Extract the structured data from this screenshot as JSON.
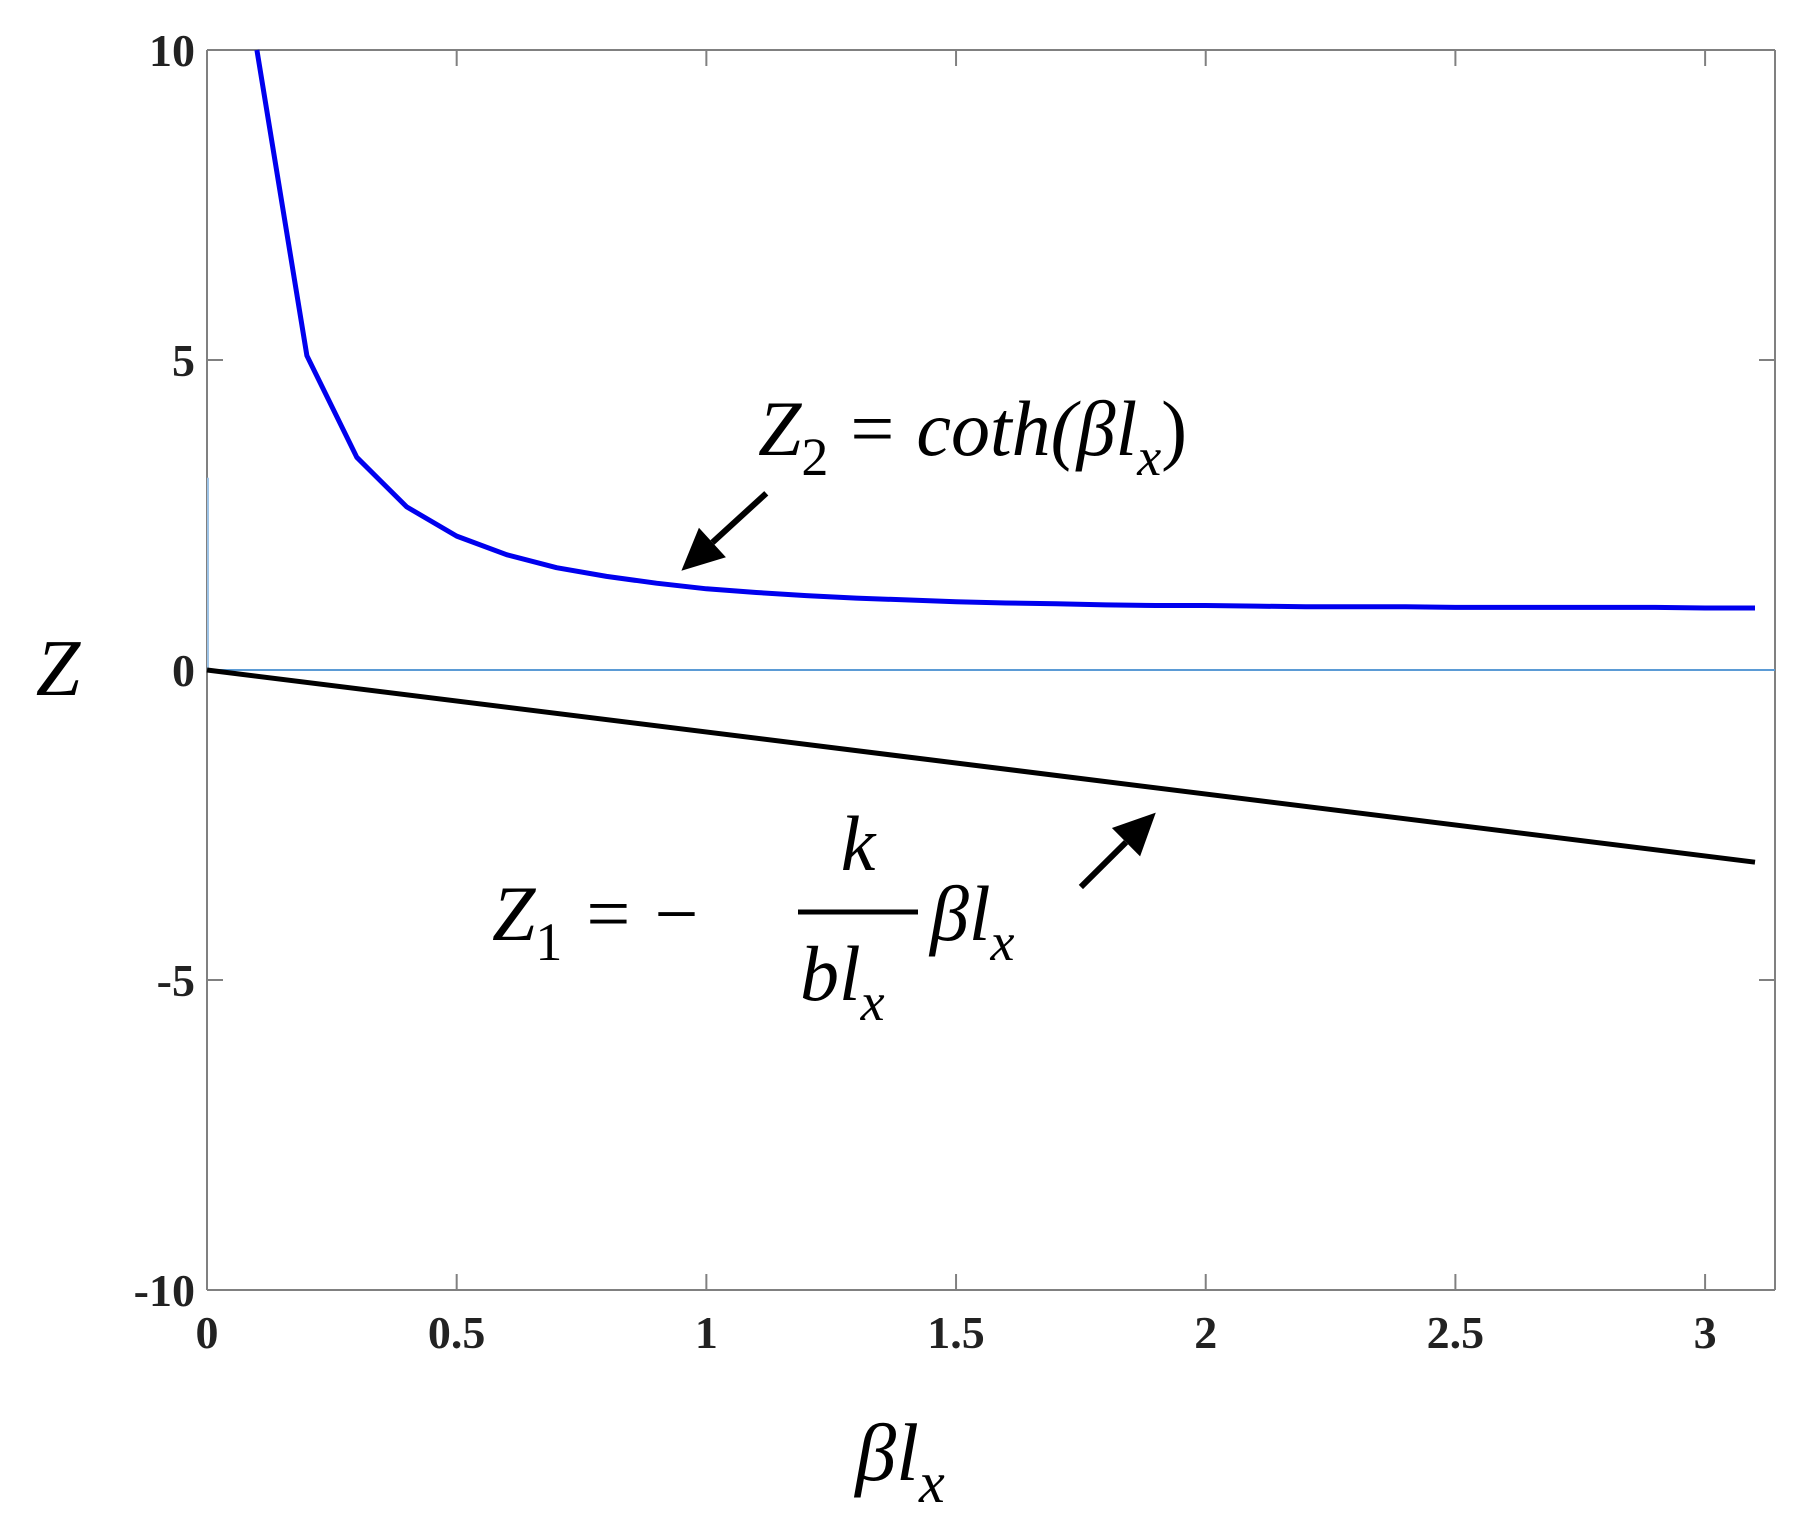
{
  "chart_data": {
    "type": "line",
    "title": "",
    "ylabel": "Z",
    "xlabel": "βl_x",
    "xlim": [
      0,
      3.14
    ],
    "ylim": [
      -10,
      10
    ],
    "x_ticks": [
      0,
      0.5,
      1,
      1.5,
      2,
      2.5,
      3
    ],
    "x_tick_labels": [
      "0",
      "0.5",
      "1",
      "1.5",
      "2",
      "2.5",
      "3"
    ],
    "y_ticks": [
      10,
      5,
      0,
      -5,
      -10
    ],
    "y_tick_labels": [
      "10",
      "5",
      "0",
      "-5",
      "-10"
    ],
    "grid": false,
    "zero_line": true,
    "colors": {
      "series_z2": "#0000ee",
      "series_z1": "#000000",
      "zero_line": "#5b9bd5",
      "axes": "#808080"
    },
    "series": [
      {
        "key": "z2",
        "x": [
          0.1,
          0.2,
          0.3,
          0.4,
          0.5,
          0.6,
          0.7,
          0.8,
          0.9,
          1.0,
          1.1,
          1.2,
          1.3,
          1.4,
          1.5,
          1.6,
          1.7,
          1.8,
          1.9,
          2.0,
          2.1,
          2.2,
          2.3,
          2.4,
          2.5,
          2.6,
          2.7,
          2.8,
          2.9,
          3.0,
          3.1
        ],
        "values": [
          10.0,
          5.07,
          3.43,
          2.63,
          2.16,
          1.86,
          1.65,
          1.51,
          1.4,
          1.31,
          1.25,
          1.2,
          1.16,
          1.13,
          1.1,
          1.08,
          1.07,
          1.05,
          1.04,
          1.04,
          1.03,
          1.02,
          1.02,
          1.02,
          1.01,
          1.01,
          1.01,
          1.01,
          1.01,
          1.0,
          1.0
        ]
      },
      {
        "key": "z1",
        "x": [
          0,
          3.1
        ],
        "values": [
          0,
          -3.1
        ]
      }
    ],
    "annotations": {
      "z2_label": {
        "Z": "Z",
        "sub": "2",
        "eq": "=",
        "fn": "coth(",
        "beta": "β",
        "l": "l",
        "l_sub": "x",
        "close": ")",
        "arrow_tip": [
          0.95,
          1.6
        ],
        "arrow_tail": [
          1.12,
          2.85
        ]
      },
      "z1_label": {
        "Z": "Z",
        "sub": "1",
        "eq": "=",
        "minus": "−",
        "num": "k",
        "den_b": "b",
        "den_l": "l",
        "den_sub": "x",
        "beta": "β",
        "l": "l",
        "l_sub": "x",
        "arrow_tip": [
          1.9,
          -2.3
        ],
        "arrow_tail": [
          1.75,
          -3.5
        ]
      }
    },
    "axis_labels": {
      "y": "Z",
      "x_beta": "β",
      "x_l": "l",
      "x_sub": "x"
    }
  }
}
